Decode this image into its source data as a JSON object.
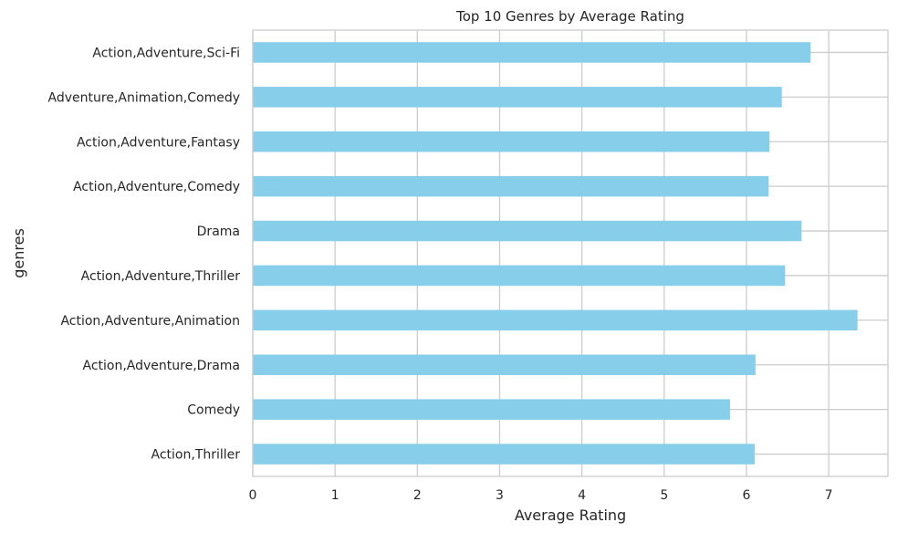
{
  "chart_data": {
    "type": "bar",
    "orientation": "horizontal",
    "title": "Top 10 Genres by Average Rating",
    "xlabel": "Average Rating",
    "ylabel": "genres",
    "xlim": [
      0,
      7.72
    ],
    "xticks": [
      0,
      1,
      2,
      3,
      4,
      5,
      6,
      7
    ],
    "grid": true,
    "bar_color": "#87CEEB",
    "categories": [
      "Action,Adventure,Sci-Fi",
      "Adventure,Animation,Comedy",
      "Action,Adventure,Fantasy",
      "Action,Adventure,Comedy",
      "Drama",
      "Action,Adventure,Thriller",
      "Action,Adventure,Animation",
      "Action,Adventure,Drama",
      "Comedy",
      "Action,Thriller"
    ],
    "values": [
      6.78,
      6.43,
      6.28,
      6.27,
      6.67,
      6.47,
      7.35,
      6.11,
      5.8,
      6.1
    ]
  }
}
